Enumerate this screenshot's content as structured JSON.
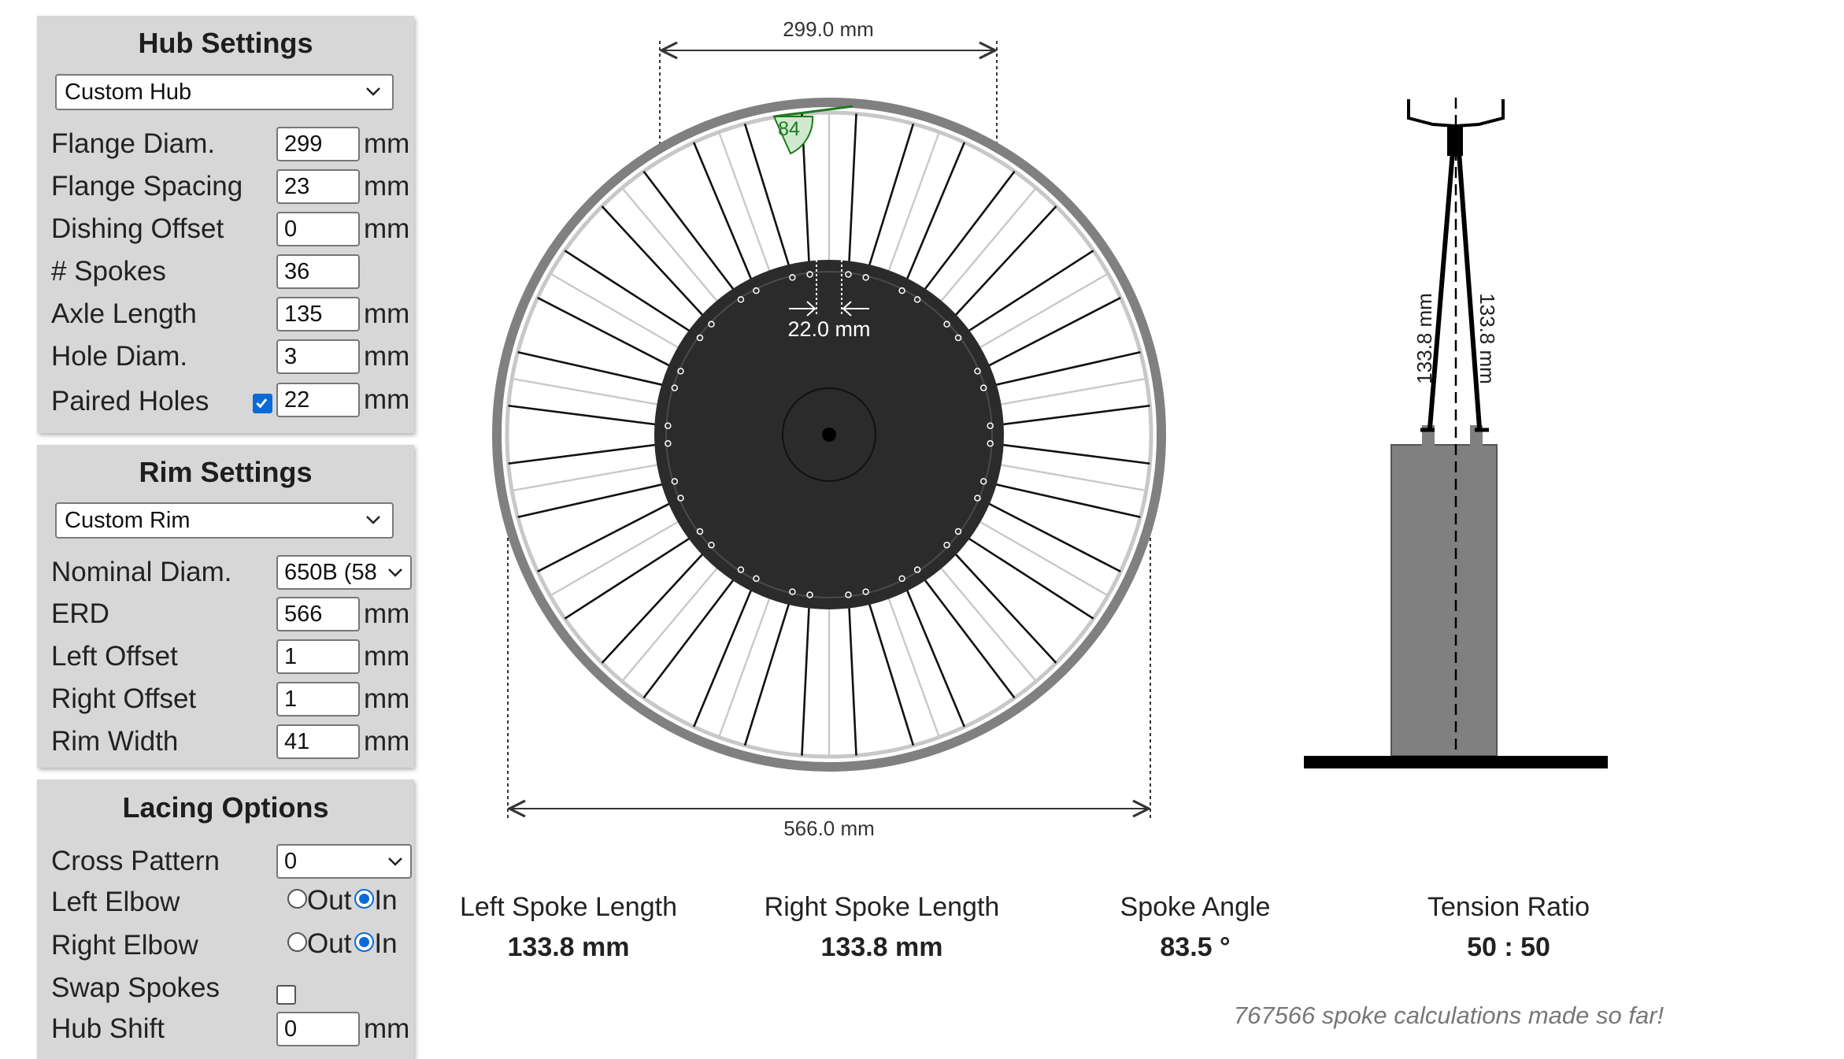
{
  "hub": {
    "title": "Hub Settings",
    "preset": "Custom Hub",
    "fields": [
      {
        "label": "Flange Diam.",
        "value": "299",
        "unit": "mm"
      },
      {
        "label": "Flange Spacing",
        "value": "23",
        "unit": "mm"
      },
      {
        "label": "Dishing Offset",
        "value": "0",
        "unit": "mm"
      },
      {
        "label": "# Spokes",
        "value": "36",
        "unit": ""
      },
      {
        "label": "Axle Length",
        "value": "135",
        "unit": "mm"
      },
      {
        "label": "Hole Diam.",
        "value": "3",
        "unit": "mm"
      },
      {
        "label": "Paired Holes",
        "value": "22",
        "unit": "mm",
        "checked": true
      }
    ]
  },
  "rim": {
    "title": "Rim Settings",
    "preset": "Custom Rim",
    "nominal_label": "Nominal Diam.",
    "nominal_value": "650B (58",
    "fields": [
      {
        "label": "ERD",
        "value": "566",
        "unit": "mm"
      },
      {
        "label": "Left Offset",
        "value": "1",
        "unit": "mm"
      },
      {
        "label": "Right Offset",
        "value": "1",
        "unit": "mm"
      },
      {
        "label": "Rim Width",
        "value": "41",
        "unit": "mm"
      }
    ]
  },
  "lacing": {
    "title": "Lacing Options",
    "cross_label": "Cross Pattern",
    "cross_value": "0",
    "left_elbow_label": "Left Elbow",
    "right_elbow_label": "Right Elbow",
    "opt_out": "Out",
    "opt_in": "In",
    "left_elbow": "In",
    "right_elbow": "In",
    "swap_label": "Swap Spokes",
    "swap_checked": false,
    "shift_label": "Hub Shift",
    "shift_value": "0",
    "shift_unit": "mm"
  },
  "diagram": {
    "flange_dim": "299.0 mm",
    "erd_dim": "566.0 mm",
    "pair_dim": "22.0 mm",
    "angle_badge": "84",
    "left_len_label": "133.8 mm",
    "right_len_label": "133.8 mm",
    "spoke_count": 36,
    "cross": 0
  },
  "results": [
    {
      "title": "Left Spoke Length",
      "value": "133.8 mm"
    },
    {
      "title": "Right Spoke Length",
      "value": "133.8 mm"
    },
    {
      "title": "Spoke Angle",
      "value": "83.5 °"
    },
    {
      "title": "Tension Ratio",
      "value": "50 : 50"
    }
  ],
  "footer": "767566 spoke calculations made so far!",
  "colors": {
    "panel": "#d7d7d7",
    "accent": "#0b6bd6",
    "hub": "#2b2b2b",
    "rim": "#808080"
  }
}
